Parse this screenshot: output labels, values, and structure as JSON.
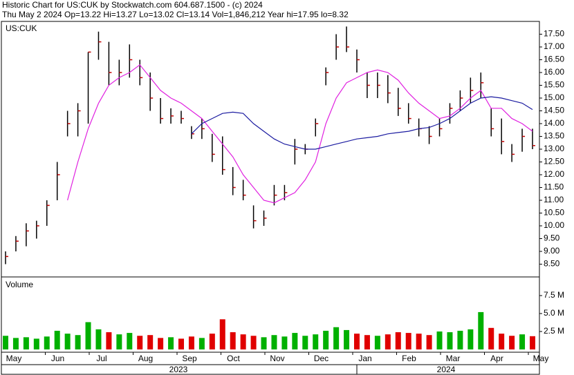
{
  "chart_data": [
    {
      "type": "ohlc",
      "title": "Historic Chart for US:CUK by Stockwatch.com 604.687.1500 - (c) 2024",
      "subtitle": "Thu May  2 2024  Op=13.22  Hi=13.27  Lo=13.02  Cl=13.14  Vol=1,846,212  Year hi=17.95  lo=8.32",
      "symbol": "US:CUK",
      "high": [
        9.0,
        9.6,
        10.1,
        10.2,
        11.0,
        12.5,
        14.5,
        14.8,
        16.8,
        17.6,
        17.2,
        16.5,
        17.1,
        16.5,
        16.0,
        15.0,
        14.6,
        14.5,
        13.9,
        14.2,
        13.6,
        13.5,
        12.3,
        11.8,
        10.8,
        10.6,
        11.6,
        11.6,
        13.4,
        13.2,
        14.2,
        16.2,
        17.5,
        17.8,
        16.9,
        16.0,
        16.0,
        15.9,
        15.4,
        14.8,
        14.2,
        13.9,
        14.2,
        14.8,
        15.3,
        15.8,
        16.0,
        14.6,
        14.2,
        13.2,
        13.8,
        13.8
      ],
      "low": [
        8.5,
        9.0,
        9.2,
        9.5,
        10.0,
        11.0,
        13.5,
        13.5,
        14.0,
        16.5,
        15.5,
        15.5,
        15.8,
        15.5,
        14.5,
        14.0,
        14.0,
        14.0,
        13.4,
        13.4,
        12.5,
        12.0,
        11.2,
        11.0,
        9.9,
        10.0,
        10.8,
        11.0,
        12.4,
        12.8,
        13.5,
        15.5,
        16.5,
        16.8,
        16.0,
        15.0,
        15.0,
        14.8,
        14.3,
        14.0,
        13.5,
        13.2,
        13.5,
        14.0,
        14.5,
        14.8,
        15.0,
        13.5,
        12.8,
        12.5,
        12.9,
        13.0
      ],
      "close": [
        8.8,
        9.4,
        9.8,
        10.0,
        10.8,
        12.0,
        14.0,
        14.5,
        16.8,
        17.2,
        16.0,
        16.0,
        16.5,
        15.8,
        15.0,
        14.2,
        14.3,
        14.2,
        13.6,
        13.8,
        12.8,
        12.2,
        11.5,
        11.2,
        10.2,
        10.3,
        11.2,
        11.3,
        13.0,
        13.0,
        14.0,
        16.0,
        17.0,
        17.0,
        16.5,
        15.5,
        15.5,
        15.2,
        14.6,
        14.2,
        13.8,
        13.5,
        13.8,
        14.6,
        15.0,
        15.3,
        15.6,
        13.8,
        13.3,
        12.8,
        13.5,
        13.14
      ],
      "color": "#000000",
      "close_color": "#c00000",
      "moving_averages": [
        {
          "color": "#e020e0",
          "values": [
            null,
            null,
            null,
            null,
            null,
            null,
            11.0,
            12.5,
            13.8,
            14.8,
            15.5,
            15.8,
            16.0,
            16.3,
            15.8,
            15.3,
            15.0,
            14.8,
            14.5,
            14.2,
            13.7,
            13.2,
            12.7,
            12.0,
            11.5,
            11.0,
            10.9,
            11.1,
            11.3,
            11.8,
            12.5,
            14.0,
            15.0,
            15.6,
            15.8,
            16.0,
            16.1,
            16.0,
            15.7,
            15.2,
            14.8,
            14.5,
            14.2,
            14.3,
            14.6,
            15.0,
            15.3,
            14.6,
            14.6,
            14.2,
            14.0,
            13.7
          ]
        },
        {
          "color": "#1a1aa0",
          "values": [
            null,
            null,
            null,
            null,
            null,
            null,
            null,
            null,
            null,
            null,
            null,
            null,
            null,
            null,
            null,
            null,
            null,
            null,
            13.6,
            14.0,
            14.2,
            14.4,
            14.45,
            14.4,
            14.0,
            13.7,
            13.4,
            13.2,
            13.1,
            13.0,
            13.0,
            13.1,
            13.2,
            13.3,
            13.4,
            13.45,
            13.5,
            13.6,
            13.65,
            13.7,
            13.8,
            13.85,
            14.0,
            14.2,
            14.5,
            14.8,
            15.0,
            15.05,
            15.0,
            14.9,
            14.8,
            14.55
          ]
        }
      ],
      "ylim": [
        8.0,
        18.0
      ],
      "yticks": [
        {
          "value": 8.5,
          "label": "8.50"
        },
        {
          "value": 9.0,
          "label": "9.00"
        },
        {
          "value": 9.5,
          "label": "9.50"
        },
        {
          "value": 10.0,
          "label": "10.00"
        },
        {
          "value": 10.5,
          "label": "10.50"
        },
        {
          "value": 11.0,
          "label": "11.00"
        },
        {
          "value": 11.5,
          "label": "11.50"
        },
        {
          "value": 12.0,
          "label": "12.00"
        },
        {
          "value": 12.5,
          "label": "12.50"
        },
        {
          "value": 13.0,
          "label": "13.00"
        },
        {
          "value": 13.5,
          "label": "13.50"
        },
        {
          "value": 14.0,
          "label": "14.00"
        },
        {
          "value": 14.5,
          "label": "14.50"
        },
        {
          "value": 15.0,
          "label": "15.00"
        },
        {
          "value": 15.5,
          "label": "15.50"
        },
        {
          "value": 16.0,
          "label": "16.00"
        },
        {
          "value": 16.5,
          "label": "16.50"
        },
        {
          "value": 17.0,
          "label": "17.00"
        },
        {
          "value": 17.5,
          "label": "17.50"
        }
      ],
      "months": [
        "May",
        "Jun",
        "Jul",
        "Aug",
        "Sep",
        "Oct",
        "Nov",
        "Dec",
        "Jan",
        "Feb",
        "Mar",
        "Apr",
        "May"
      ],
      "years": [
        "2023",
        "2024"
      ]
    },
    {
      "type": "bar",
      "title": "Volume",
      "values": [
        1900000,
        1600000,
        1700000,
        1500000,
        1800000,
        2600000,
        2200000,
        2000000,
        3800000,
        2800000,
        2400000,
        2100000,
        2300000,
        1900000,
        2000000,
        1600000,
        1700000,
        1500000,
        1800000,
        1600000,
        2200000,
        4200000,
        2400000,
        2100000,
        1900000,
        1700000,
        2000000,
        1800000,
        2300000,
        1900000,
        2100000,
        2600000,
        3100000,
        2700000,
        2200000,
        2000000,
        1900000,
        2100000,
        2400000,
        2300000,
        2200000,
        2000000,
        2500000,
        2400000,
        2600000,
        2800000,
        5200000,
        3000000,
        2200000,
        1900000,
        2100000,
        1846212
      ],
      "up_color": "#00b000",
      "down_color": "#e00000",
      "ylim": [
        0,
        10000000
      ],
      "yticks": [
        {
          "value": 2500000,
          "label": "2.5 M"
        },
        {
          "value": 5000000,
          "label": "5.0 M"
        },
        {
          "value": 7500000,
          "label": "7.5 M"
        }
      ]
    }
  ]
}
